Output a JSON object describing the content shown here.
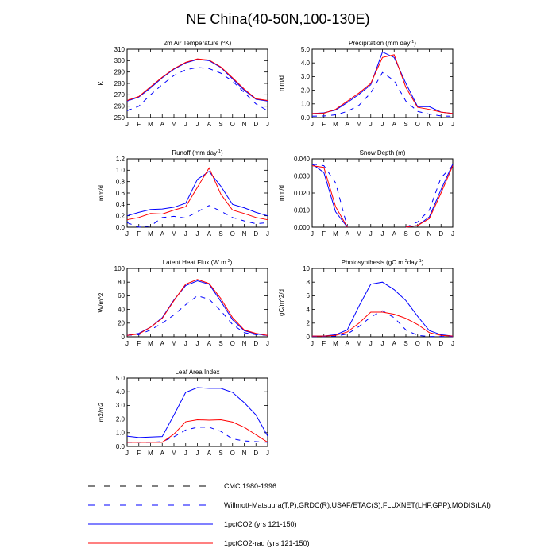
{
  "title": "NE China(40-50N,100-130E)",
  "month_labels": [
    "J",
    "F",
    "M",
    "A",
    "M",
    "J",
    "J",
    "A",
    "S",
    "O",
    "N",
    "D",
    "J"
  ],
  "series_styles": [
    {
      "color": "#000000",
      "dash": "6,6"
    },
    {
      "color": "#0000ff",
      "dash": "6,6"
    },
    {
      "color": "#0000ff",
      "dash": ""
    },
    {
      "color": "#ff0000",
      "dash": ""
    }
  ],
  "legend": [
    {
      "label": "CMC 1980-1996"
    },
    {
      "label": "Willmott-Matsuura(T,P),GRDC(R),USAF/ETAC(S),FLUXNET(LHF,GPP),MODIS(LAI)"
    },
    {
      "label": "1pctCO2 (yrs 121-150)"
    },
    {
      "label": "1pctCO2-rad (yrs 121-150)"
    }
  ],
  "chart_data": [
    {
      "type": "line",
      "title": "2m Air Temperature (°K)",
      "title_parts": [
        "2m Air Temperature (",
        "o",
        "K)"
      ],
      "ylabel": "K",
      "ylim": [
        250,
        310
      ],
      "yticks": [
        250,
        260,
        270,
        280,
        290,
        300,
        310
      ],
      "ytick_labels": [
        "250",
        "260",
        "270",
        "280",
        "290",
        "300",
        "310"
      ],
      "x": [
        "J",
        "F",
        "M",
        "A",
        "M",
        "J",
        "J",
        "A",
        "S",
        "O",
        "N",
        "D",
        "J"
      ],
      "series": [
        {
          "values": [
            256,
            260,
            270,
            279,
            287,
            292,
            294,
            293,
            289,
            282,
            272,
            262,
            256
          ]
        },
        {
          "values": [
            264.5,
            268,
            276,
            285,
            292.5,
            298,
            301,
            300,
            294,
            284,
            274,
            266,
            264.5
          ]
        },
        {
          "values": [
            265,
            268.5,
            277,
            285.5,
            293,
            298.5,
            301.5,
            300.5,
            294.5,
            285,
            275,
            266.5,
            265
          ]
        }
      ]
    },
    {
      "type": "line",
      "title": "Precipitation (mm day-1)",
      "title_parts": [
        "Precipitation (mm day",
        "-1",
        ")"
      ],
      "ylabel": "mm/d",
      "ylim": [
        0,
        5
      ],
      "yticks": [
        0,
        1,
        2,
        3,
        4,
        5
      ],
      "ytick_labels": [
        "0.0",
        "1.0",
        "2.0",
        "3.0",
        "4.0",
        "5.0"
      ],
      "x": [
        "J",
        "F",
        "M",
        "A",
        "M",
        "J",
        "J",
        "A",
        "S",
        "O",
        "N",
        "D",
        "J"
      ],
      "series": [
        {
          "values": [
            0.1,
            0.12,
            0.2,
            0.45,
            0.9,
            1.8,
            3.3,
            2.7,
            1.2,
            0.45,
            0.25,
            0.12,
            0.1
          ]
        },
        {
          "values": [
            0.3,
            0.35,
            0.55,
            1.1,
            1.7,
            2.4,
            4.8,
            4.4,
            2.5,
            0.8,
            0.8,
            0.4,
            0.3
          ]
        },
        {
          "values": [
            0.3,
            0.32,
            0.6,
            1.2,
            1.8,
            2.5,
            4.4,
            4.6,
            2.2,
            0.75,
            0.6,
            0.4,
            0.3
          ]
        }
      ]
    },
    {
      "type": "line",
      "title": "Runoff (mm day-1)",
      "title_parts": [
        "Runoff (mm day",
        "-1",
        ")"
      ],
      "ylabel": "mm/d",
      "ylim": [
        0,
        1.2
      ],
      "yticks": [
        0,
        0.2,
        0.4,
        0.6,
        0.8,
        1.0,
        1.2
      ],
      "ytick_labels": [
        "0.0",
        "0.2",
        "0.4",
        "0.6",
        "0.8",
        "1.0",
        "1.2"
      ],
      "x": [
        "J",
        "F",
        "M",
        "A",
        "M",
        "J",
        "J",
        "A",
        "S",
        "O",
        "N",
        "D",
        "J"
      ],
      "series": [
        {
          "values": [
            0.08,
            0.0,
            0.02,
            0.17,
            0.19,
            0.16,
            0.27,
            0.38,
            0.28,
            0.17,
            0.11,
            0.06,
            0.08
          ]
        },
        {
          "values": [
            0.2,
            0.26,
            0.31,
            0.32,
            0.35,
            0.42,
            0.84,
            0.98,
            0.72,
            0.4,
            0.34,
            0.26,
            0.2
          ]
        },
        {
          "values": [
            0.13,
            0.17,
            0.24,
            0.23,
            0.3,
            0.36,
            0.7,
            1.04,
            0.58,
            0.3,
            0.24,
            0.17,
            0.13
          ]
        }
      ]
    },
    {
      "type": "line",
      "title": "Snow Depth (m)",
      "title_parts": [
        "Snow Depth (m)"
      ],
      "ylabel": "mm/d",
      "ylim": [
        0,
        0.04
      ],
      "yticks": [
        0,
        0.01,
        0.02,
        0.03,
        0.04
      ],
      "ytick_labels": [
        "0.000",
        "0.010",
        "0.020",
        "0.030",
        "0.040"
      ],
      "x": [
        "J",
        "F",
        "M",
        "A",
        "M",
        "J",
        "J",
        "A",
        "S",
        "O",
        "N",
        "D",
        "J"
      ],
      "series": [
        {
          "values": [
            0.037,
            0.036,
            0.026,
            0.0,
            null,
            null,
            null,
            null,
            0.0,
            0.003,
            0.01,
            0.029,
            0.036
          ]
        },
        {
          "values": [
            0.037,
            0.032,
            0.009,
            0.0,
            null,
            null,
            null,
            null,
            0.0,
            0.001,
            0.006,
            0.022,
            0.037
          ]
        },
        {
          "values": [
            0.036,
            0.035,
            0.012,
            0.0,
            null,
            null,
            null,
            null,
            0.0,
            0.001,
            0.005,
            0.02,
            0.036
          ]
        }
      ]
    },
    {
      "type": "line",
      "title": "Latent Heat Flux (W m-2)",
      "title_parts": [
        "Latent Heat Flux (W m",
        "-2",
        ")"
      ],
      "ylabel": "W/m^2",
      "ylim": [
        0,
        100
      ],
      "yticks": [
        0,
        20,
        40,
        60,
        80,
        100
      ],
      "ytick_labels": [
        "0",
        "20",
        "40",
        "60",
        "80",
        "100"
      ],
      "x": [
        "J",
        "F",
        "M",
        "A",
        "M",
        "J",
        "J",
        "A",
        "S",
        "O",
        "N",
        "D",
        "J"
      ],
      "series": [
        {
          "values": [
            2,
            3,
            10,
            20,
            32,
            47,
            60,
            55,
            38,
            18,
            6,
            3,
            2
          ]
        },
        {
          "values": [
            2,
            5,
            14,
            28,
            54,
            75,
            82,
            77,
            52,
            25,
            9,
            4,
            2
          ]
        },
        {
          "values": [
            2,
            4,
            14,
            27,
            53,
            77,
            84,
            78,
            56,
            28,
            10,
            5,
            2
          ]
        }
      ]
    },
    {
      "type": "line",
      "title": "Photosynthesis (gC m-2day-1)",
      "title_parts": [
        "Photosynthesis (gC m",
        "-2",
        "day",
        "-1",
        ")"
      ],
      "ylabel": "gC/m^2/d",
      "ylim": [
        0,
        10
      ],
      "yticks": [
        0,
        2,
        4,
        6,
        8,
        10
      ],
      "ytick_labels": [
        "0",
        "2",
        "4",
        "6",
        "8",
        "10"
      ],
      "x": [
        "J",
        "F",
        "M",
        "A",
        "M",
        "J",
        "J",
        "A",
        "S",
        "O",
        "N",
        "D",
        "J"
      ],
      "series": [
        {
          "values": [
            0.05,
            0.05,
            0.1,
            0.4,
            1.5,
            2.9,
            3.8,
            2.8,
            1.0,
            0.2,
            0.05,
            0.05,
            0.05
          ]
        },
        {
          "values": [
            0.1,
            0.1,
            0.3,
            1.0,
            4.5,
            7.7,
            8.0,
            6.9,
            5.3,
            3.0,
            0.9,
            0.3,
            0.1
          ]
        },
        {
          "values": [
            0.1,
            0.1,
            0.2,
            0.7,
            2.0,
            3.6,
            3.6,
            3.3,
            2.7,
            1.8,
            0.6,
            0.2,
            0.1
          ]
        }
      ]
    },
    {
      "type": "line",
      "title": "Leaf Area Index",
      "title_parts": [
        "Leaf Area Index"
      ],
      "ylabel": "m2/m2",
      "ylim": [
        0,
        5
      ],
      "yticks": [
        0,
        1,
        2,
        3,
        4,
        5
      ],
      "ytick_labels": [
        "0.0",
        "1.0",
        "2.0",
        "3.0",
        "4.0",
        "5.0"
      ],
      "x": [
        "J",
        "F",
        "M",
        "A",
        "M",
        "J",
        "J",
        "A",
        "S",
        "O",
        "N",
        "D",
        "J"
      ],
      "series": [
        {
          "values": [
            0.3,
            0.3,
            0.3,
            0.35,
            0.7,
            1.2,
            1.4,
            1.4,
            1.1,
            0.55,
            0.4,
            0.35,
            0.3
          ]
        },
        {
          "values": [
            0.75,
            0.65,
            0.68,
            0.72,
            2.3,
            3.95,
            4.3,
            4.25,
            4.25,
            3.95,
            3.2,
            2.3,
            0.75
          ]
        },
        {
          "values": [
            0.3,
            0.3,
            0.3,
            0.3,
            0.9,
            1.8,
            1.95,
            1.92,
            1.95,
            1.78,
            1.4,
            0.85,
            0.3
          ]
        }
      ]
    }
  ]
}
